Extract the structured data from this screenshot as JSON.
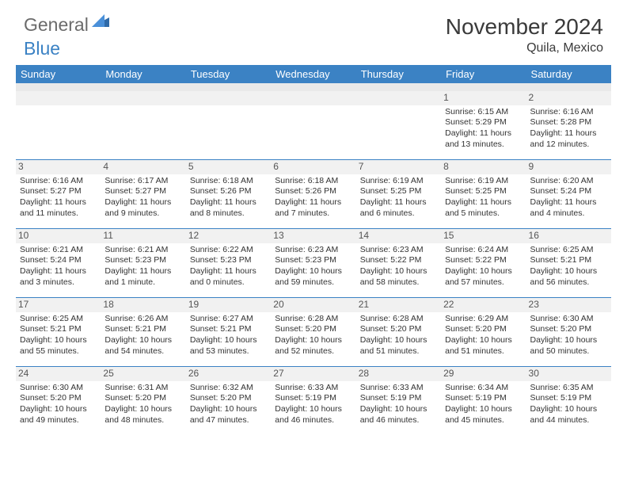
{
  "logo": {
    "text1": "General",
    "text2": "Blue"
  },
  "title": "November 2024",
  "location": "Quila, Mexico",
  "weekdays": [
    "Sunday",
    "Monday",
    "Tuesday",
    "Wednesday",
    "Thursday",
    "Friday",
    "Saturday"
  ],
  "colors": {
    "header_bar": "#3b82c4",
    "header_text": "#ffffff",
    "sub_row": "#e9e9e9",
    "border": "#3b82c4",
    "text": "#333333",
    "daynum_bg": "#f1f1f1"
  },
  "weeks": [
    [
      {
        "num": "",
        "lines": []
      },
      {
        "num": "",
        "lines": []
      },
      {
        "num": "",
        "lines": []
      },
      {
        "num": "",
        "lines": []
      },
      {
        "num": "",
        "lines": []
      },
      {
        "num": "1",
        "lines": [
          "Sunrise: 6:15 AM",
          "Sunset: 5:29 PM",
          "Daylight: 11 hours",
          "and 13 minutes."
        ]
      },
      {
        "num": "2",
        "lines": [
          "Sunrise: 6:16 AM",
          "Sunset: 5:28 PM",
          "Daylight: 11 hours",
          "and 12 minutes."
        ]
      }
    ],
    [
      {
        "num": "3",
        "lines": [
          "Sunrise: 6:16 AM",
          "Sunset: 5:27 PM",
          "Daylight: 11 hours",
          "and 11 minutes."
        ]
      },
      {
        "num": "4",
        "lines": [
          "Sunrise: 6:17 AM",
          "Sunset: 5:27 PM",
          "Daylight: 11 hours",
          "and 9 minutes."
        ]
      },
      {
        "num": "5",
        "lines": [
          "Sunrise: 6:18 AM",
          "Sunset: 5:26 PM",
          "Daylight: 11 hours",
          "and 8 minutes."
        ]
      },
      {
        "num": "6",
        "lines": [
          "Sunrise: 6:18 AM",
          "Sunset: 5:26 PM",
          "Daylight: 11 hours",
          "and 7 minutes."
        ]
      },
      {
        "num": "7",
        "lines": [
          "Sunrise: 6:19 AM",
          "Sunset: 5:25 PM",
          "Daylight: 11 hours",
          "and 6 minutes."
        ]
      },
      {
        "num": "8",
        "lines": [
          "Sunrise: 6:19 AM",
          "Sunset: 5:25 PM",
          "Daylight: 11 hours",
          "and 5 minutes."
        ]
      },
      {
        "num": "9",
        "lines": [
          "Sunrise: 6:20 AM",
          "Sunset: 5:24 PM",
          "Daylight: 11 hours",
          "and 4 minutes."
        ]
      }
    ],
    [
      {
        "num": "10",
        "lines": [
          "Sunrise: 6:21 AM",
          "Sunset: 5:24 PM",
          "Daylight: 11 hours",
          "and 3 minutes."
        ]
      },
      {
        "num": "11",
        "lines": [
          "Sunrise: 6:21 AM",
          "Sunset: 5:23 PM",
          "Daylight: 11 hours",
          "and 1 minute."
        ]
      },
      {
        "num": "12",
        "lines": [
          "Sunrise: 6:22 AM",
          "Sunset: 5:23 PM",
          "Daylight: 11 hours",
          "and 0 minutes."
        ]
      },
      {
        "num": "13",
        "lines": [
          "Sunrise: 6:23 AM",
          "Sunset: 5:23 PM",
          "Daylight: 10 hours",
          "and 59 minutes."
        ]
      },
      {
        "num": "14",
        "lines": [
          "Sunrise: 6:23 AM",
          "Sunset: 5:22 PM",
          "Daylight: 10 hours",
          "and 58 minutes."
        ]
      },
      {
        "num": "15",
        "lines": [
          "Sunrise: 6:24 AM",
          "Sunset: 5:22 PM",
          "Daylight: 10 hours",
          "and 57 minutes."
        ]
      },
      {
        "num": "16",
        "lines": [
          "Sunrise: 6:25 AM",
          "Sunset: 5:21 PM",
          "Daylight: 10 hours",
          "and 56 minutes."
        ]
      }
    ],
    [
      {
        "num": "17",
        "lines": [
          "Sunrise: 6:25 AM",
          "Sunset: 5:21 PM",
          "Daylight: 10 hours",
          "and 55 minutes."
        ]
      },
      {
        "num": "18",
        "lines": [
          "Sunrise: 6:26 AM",
          "Sunset: 5:21 PM",
          "Daylight: 10 hours",
          "and 54 minutes."
        ]
      },
      {
        "num": "19",
        "lines": [
          "Sunrise: 6:27 AM",
          "Sunset: 5:21 PM",
          "Daylight: 10 hours",
          "and 53 minutes."
        ]
      },
      {
        "num": "20",
        "lines": [
          "Sunrise: 6:28 AM",
          "Sunset: 5:20 PM",
          "Daylight: 10 hours",
          "and 52 minutes."
        ]
      },
      {
        "num": "21",
        "lines": [
          "Sunrise: 6:28 AM",
          "Sunset: 5:20 PM",
          "Daylight: 10 hours",
          "and 51 minutes."
        ]
      },
      {
        "num": "22",
        "lines": [
          "Sunrise: 6:29 AM",
          "Sunset: 5:20 PM",
          "Daylight: 10 hours",
          "and 51 minutes."
        ]
      },
      {
        "num": "23",
        "lines": [
          "Sunrise: 6:30 AM",
          "Sunset: 5:20 PM",
          "Daylight: 10 hours",
          "and 50 minutes."
        ]
      }
    ],
    [
      {
        "num": "24",
        "lines": [
          "Sunrise: 6:30 AM",
          "Sunset: 5:20 PM",
          "Daylight: 10 hours",
          "and 49 minutes."
        ]
      },
      {
        "num": "25",
        "lines": [
          "Sunrise: 6:31 AM",
          "Sunset: 5:20 PM",
          "Daylight: 10 hours",
          "and 48 minutes."
        ]
      },
      {
        "num": "26",
        "lines": [
          "Sunrise: 6:32 AM",
          "Sunset: 5:20 PM",
          "Daylight: 10 hours",
          "and 47 minutes."
        ]
      },
      {
        "num": "27",
        "lines": [
          "Sunrise: 6:33 AM",
          "Sunset: 5:19 PM",
          "Daylight: 10 hours",
          "and 46 minutes."
        ]
      },
      {
        "num": "28",
        "lines": [
          "Sunrise: 6:33 AM",
          "Sunset: 5:19 PM",
          "Daylight: 10 hours",
          "and 46 minutes."
        ]
      },
      {
        "num": "29",
        "lines": [
          "Sunrise: 6:34 AM",
          "Sunset: 5:19 PM",
          "Daylight: 10 hours",
          "and 45 minutes."
        ]
      },
      {
        "num": "30",
        "lines": [
          "Sunrise: 6:35 AM",
          "Sunset: 5:19 PM",
          "Daylight: 10 hours",
          "and 44 minutes."
        ]
      }
    ]
  ]
}
